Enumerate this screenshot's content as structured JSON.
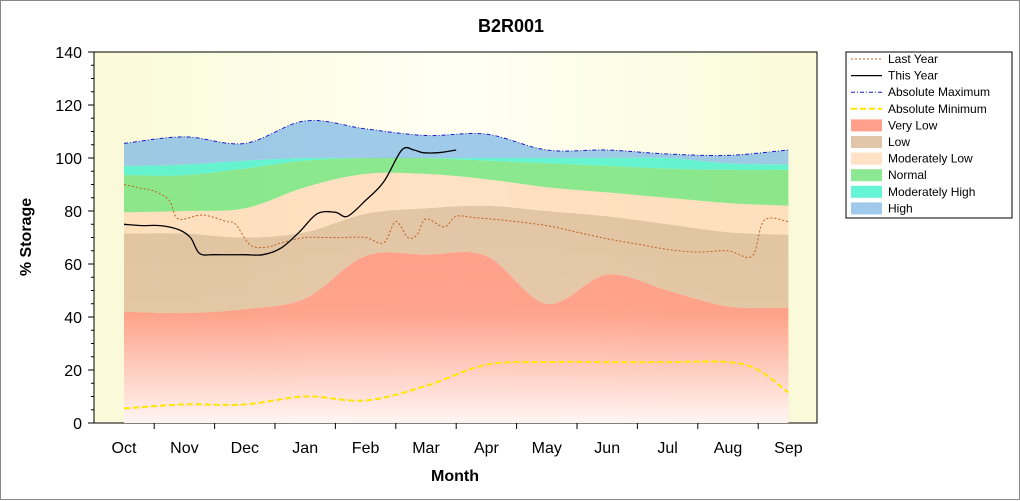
{
  "chart_data": {
    "type": "area",
    "title": "B2R001",
    "xlabel": "Month",
    "ylabel": "% Storage",
    "ylim": [
      0,
      140
    ],
    "yticks": [
      0,
      20,
      40,
      60,
      80,
      100,
      120,
      140
    ],
    "categories": [
      "Oct",
      "Nov",
      "Dec",
      "Jan",
      "Feb",
      "Mar",
      "Apr",
      "May",
      "Jun",
      "Jul",
      "Aug",
      "Sep"
    ],
    "grid": false,
    "legend_position": "right",
    "bands": [
      {
        "name": "Very Low",
        "color": "#ff7f66",
        "lower": [
          0,
          0,
          0,
          0,
          0,
          0,
          0,
          0,
          0,
          0,
          0,
          0
        ],
        "upper": [
          42,
          41.5,
          43,
          47,
          63,
          63.5,
          63,
          45,
          56,
          50,
          44,
          43.5
        ]
      },
      {
        "name": "Low",
        "color": "#d9b38c",
        "lower": [
          42,
          41.5,
          43,
          47,
          63,
          63.5,
          63,
          45,
          56,
          50,
          44,
          43.5
        ],
        "upper": [
          71.5,
          71.5,
          70,
          72,
          79,
          81,
          82,
          80,
          78,
          75,
          72,
          71
        ]
      },
      {
        "name": "Moderately Low",
        "color": "#ffd7b3",
        "lower": [
          71.5,
          71.5,
          70,
          72,
          79,
          81,
          82,
          80,
          78,
          75,
          72,
          71
        ],
        "upper": [
          79.5,
          80,
          81,
          89,
          94,
          94,
          92,
          89,
          87,
          85,
          83,
          82
        ]
      },
      {
        "name": "Normal",
        "color": "#66e06e",
        "lower": [
          79.5,
          80,
          81,
          89,
          94,
          94,
          92,
          89,
          87,
          85,
          83,
          82
        ],
        "upper": [
          93.5,
          93.5,
          96,
          99,
          100,
          100,
          99,
          98,
          97,
          96,
          95.5,
          95.5
        ]
      },
      {
        "name": "Moderately High",
        "color": "#33f0c8",
        "lower": [
          93.5,
          93.5,
          96,
          99,
          100,
          100,
          99,
          98,
          97,
          96,
          95.5,
          95.5
        ],
        "upper": [
          97,
          97.5,
          99,
          100,
          100,
          100,
          100,
          100,
          100,
          100,
          98,
          97.5
        ]
      },
      {
        "name": "High",
        "color": "#7fb8e6",
        "lower": [
          97,
          97.5,
          99,
          100,
          100,
          100,
          100,
          100,
          100,
          100,
          98,
          97.5
        ],
        "upper": [
          105.5,
          108,
          105.5,
          114,
          111,
          108.5,
          109,
          103,
          103,
          101.5,
          101,
          103
        ]
      }
    ],
    "series": [
      {
        "name": "Last Year",
        "color": "#c06020",
        "style": "dotted",
        "x": [
          0,
          0.3,
          0.5,
          0.75,
          0.9,
          1.3,
          1.7,
          1.85,
          2.1,
          2.4,
          2.6,
          3.0,
          3.3,
          3.6,
          4.0,
          4.3,
          4.5,
          4.7,
          4.85,
          5.0,
          5.3,
          5.5,
          5.8,
          6.3,
          7.0,
          7.5,
          8.0,
          8.5,
          9.0,
          9.5,
          10.0,
          10.4,
          10.6,
          11.0
        ],
        "y": [
          90,
          88.5,
          87.5,
          84,
          77,
          78.5,
          76,
          75,
          67,
          66.5,
          68,
          70,
          70,
          70,
          70,
          68,
          76,
          70,
          71,
          77,
          74,
          78,
          77.5,
          76.5,
          74.5,
          72,
          69.5,
          67.5,
          65.5,
          64.5,
          65,
          63,
          76.5,
          76
        ]
      },
      {
        "name": "This Year",
        "color": "#000000",
        "style": "solid",
        "x": [
          0,
          0.3,
          0.6,
          0.9,
          1.1,
          1.25,
          1.5,
          2.0,
          2.3,
          2.6,
          2.9,
          3.2,
          3.5,
          3.7,
          4.0,
          4.3,
          4.6,
          4.8,
          4.95,
          5.2,
          5.5
        ],
        "y": [
          75,
          74.5,
          74.5,
          73,
          70,
          64,
          63.5,
          63.5,
          63.5,
          66,
          72,
          79,
          79.5,
          78,
          84,
          91,
          103,
          103,
          102,
          102,
          103
        ]
      },
      {
        "name": "Absolute Maximum",
        "color": "#1a1acc",
        "style": "dash-dot",
        "x": [
          0,
          1,
          2,
          3,
          4,
          5,
          6,
          7,
          8,
          9,
          10,
          11
        ],
        "y": [
          105.5,
          108,
          105.5,
          114,
          111,
          108.5,
          109,
          103,
          103,
          101.5,
          101,
          103
        ]
      },
      {
        "name": "Absolute Minimum",
        "color": "#ffe600",
        "style": "dashed",
        "x": [
          0,
          1,
          2,
          3,
          4,
          5,
          6,
          7,
          8,
          9,
          10,
          10.5,
          11
        ],
        "y": [
          5.5,
          7,
          7,
          10,
          8.5,
          14,
          22,
          23,
          23,
          23,
          23,
          20,
          11.5
        ]
      }
    ],
    "legend": [
      "Last Year",
      "This Year",
      "Absolute Maximum",
      "Absolute Minimum",
      "Very Low",
      "Low",
      "Moderately Low",
      "Normal",
      "Moderately High",
      "High"
    ]
  }
}
